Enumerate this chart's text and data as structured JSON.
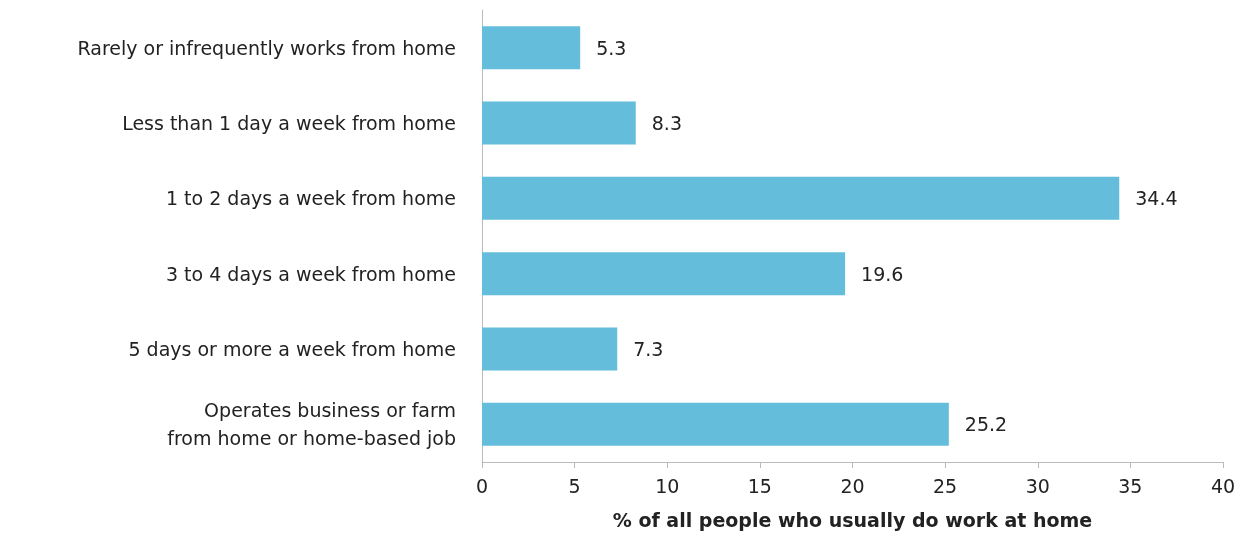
{
  "chart_data": {
    "type": "bar",
    "orientation": "horizontal",
    "categories": [
      "Rarely or infrequently works from home",
      "Less than 1 day a week from home",
      "1 to 2 days a week from home",
      "3 to 4 days a week from home",
      "5 days or more a week from home",
      "Operates business or farm\nfrom home or home-based job"
    ],
    "values": [
      5.3,
      8.3,
      34.4,
      19.6,
      7.3,
      25.2
    ],
    "color": "#65bddc",
    "xlabel": "% of all people who usually do work at home",
    "xlim": [
      0,
      40
    ],
    "xticks": [
      0,
      5,
      10,
      15,
      20,
      25,
      30,
      35,
      40
    ],
    "data_labels": true,
    "grid": false
  }
}
